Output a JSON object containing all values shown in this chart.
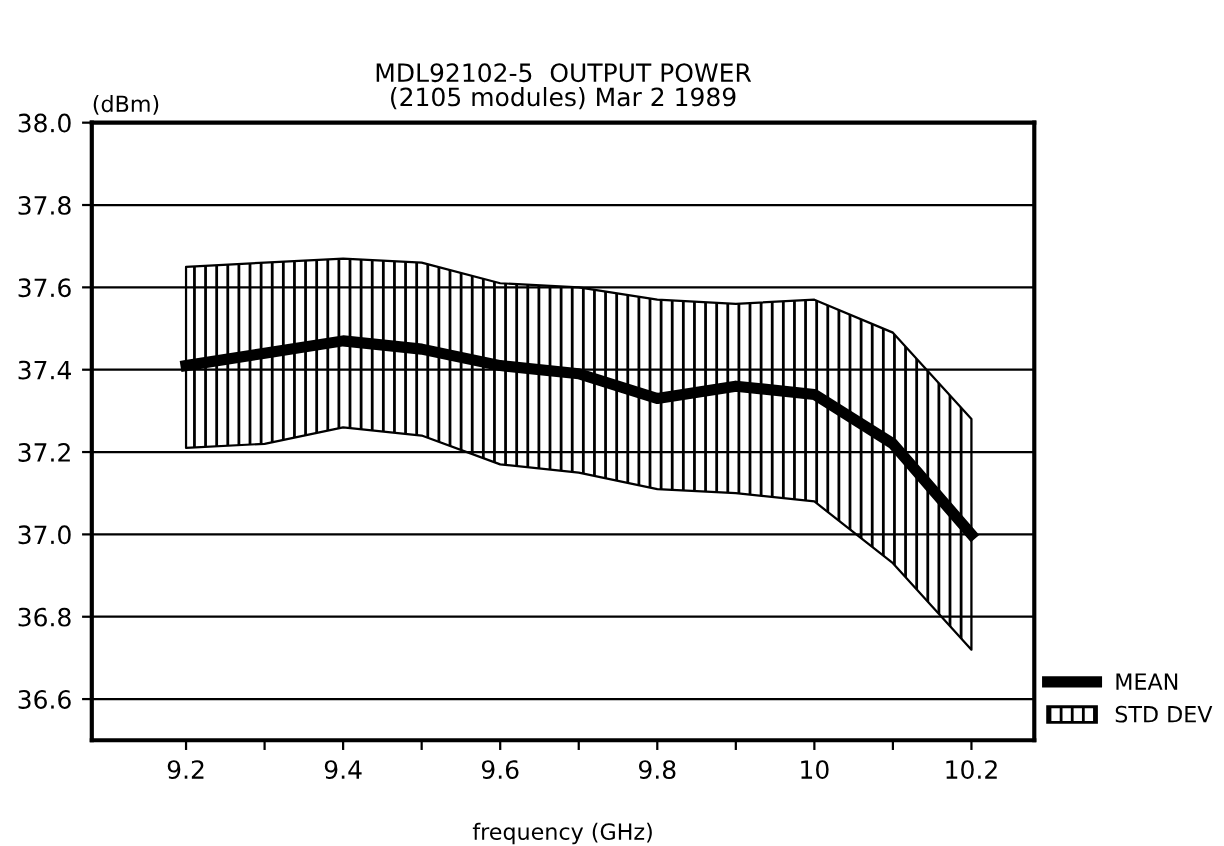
{
  "chart_data": {
    "type": "line",
    "title": "MDL92102-5  OUTPUT POWER\n(2105 modules) Mar 2 1989",
    "xlabel": "frequency (GHz)",
    "ylabel": "(dBm)",
    "x": [
      9.2,
      9.3,
      9.4,
      9.5,
      9.6,
      9.7,
      9.8,
      9.9,
      10.0,
      10.1,
      10.2
    ],
    "series": [
      {
        "name": "MEAN",
        "color": "#000000",
        "values": [
          37.41,
          37.44,
          37.47,
          37.45,
          37.41,
          37.39,
          37.33,
          37.36,
          37.34,
          37.22,
          37.0
        ],
        "lower": [
          37.21,
          37.22,
          37.26,
          37.24,
          37.17,
          37.15,
          37.11,
          37.1,
          37.08,
          36.93,
          36.72
        ],
        "upper": [
          37.65,
          37.66,
          37.67,
          37.66,
          37.61,
          37.6,
          37.57,
          37.56,
          37.57,
          37.49,
          37.28
        ]
      }
    ],
    "annotations": [
      "STD DEV"
    ],
    "xlim": [
      9.08,
      10.28
    ],
    "ylim": [
      36.5,
      38.0
    ],
    "xticks": [
      9.2,
      {
        "value": 9.3,
        "label": null
      },
      9.4,
      {
        "value": 9.5,
        "label": null
      },
      9.6,
      {
        "value": 9.7,
        "label": null
      },
      9.8,
      {
        "value": 9.9,
        "label": null
      },
      {
        "value": 10.0,
        "label": "10"
      },
      {
        "value": 10.1,
        "label": null
      },
      10.2
    ],
    "yticks": [
      {
        "value": 36.6,
        "label": "36.6"
      },
      {
        "value": 36.8,
        "label": "36.8"
      },
      {
        "value": 37.0,
        "label": "37.0"
      },
      {
        "value": 37.2,
        "label": "37.2"
      },
      {
        "value": 37.4,
        "label": "37.4"
      },
      {
        "value": 37.6,
        "label": "37.6"
      },
      {
        "value": 37.8,
        "label": "37.8"
      },
      {
        "value": 38.0,
        "label": "38.0"
      }
    ],
    "grid": "y",
    "legend": "bottom right"
  }
}
